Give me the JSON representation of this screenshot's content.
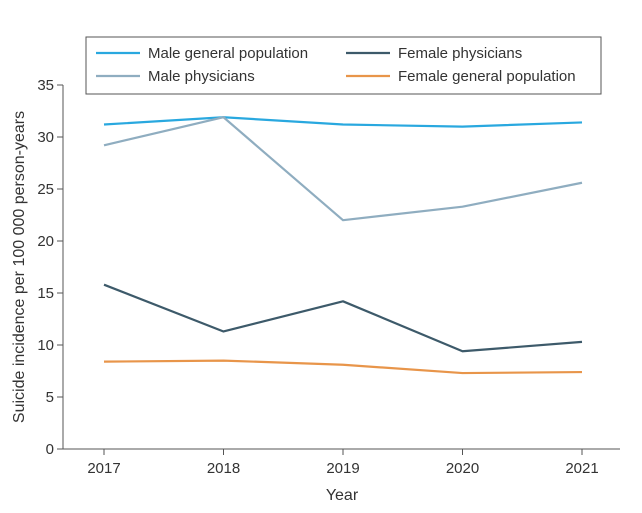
{
  "chart_data": {
    "type": "line",
    "xlabel": "Year",
    "ylabel": "Suicide incidence per 100 000 person-years",
    "ylim": [
      0,
      35
    ],
    "yticks": [
      0,
      5,
      10,
      15,
      20,
      25,
      30,
      35
    ],
    "categories": [
      "2017",
      "2018",
      "2019",
      "2020",
      "2021"
    ],
    "grid": false,
    "legend_position": "top",
    "series": [
      {
        "name": "Male general population",
        "color": "#29a8df",
        "values": [
          31.2,
          31.9,
          31.2,
          31.0,
          31.4
        ]
      },
      {
        "name": "Male physicians",
        "color": "#8fadc0",
        "values": [
          29.2,
          31.9,
          22.0,
          23.3,
          25.6
        ]
      },
      {
        "name": "Female physicians",
        "color": "#3d5a6a",
        "values": [
          15.8,
          11.3,
          14.2,
          9.4,
          10.3
        ]
      },
      {
        "name": "Female general population",
        "color": "#e8954a",
        "values": [
          8.4,
          8.5,
          8.1,
          7.3,
          7.4
        ]
      }
    ]
  }
}
